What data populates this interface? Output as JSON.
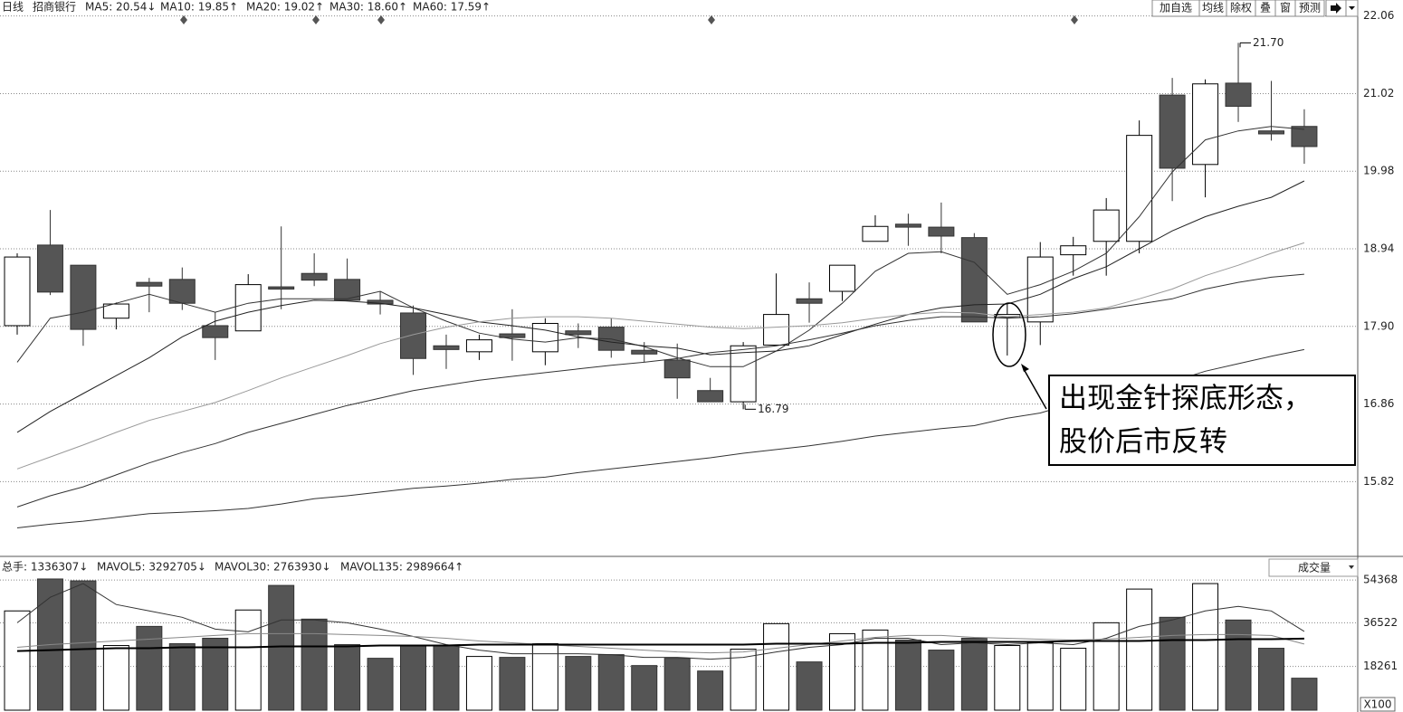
{
  "chart_data": [
    {
      "type": "candlestick",
      "title": "日线",
      "subtitle": "招商银行",
      "up_color": "#ffffff",
      "down_color": "#555555",
      "open": [
        17.91,
        18.99,
        18.72,
        18.01,
        18.49,
        18.53,
        17.91,
        17.84,
        18.43,
        18.61,
        18.53,
        18.25,
        18.08,
        17.64,
        17.56,
        17.8,
        17.56,
        17.84,
        17.89,
        17.58,
        17.45,
        17.04,
        16.89,
        17.65,
        18.27,
        18.37,
        19.04,
        19.27,
        19.23,
        19.09,
        18.02,
        17.96,
        18.86,
        19.04,
        19.04,
        21.0,
        20.07,
        21.16,
        20.52,
        20.58
      ],
      "close": [
        18.83,
        18.36,
        17.86,
        18.2,
        18.44,
        18.21,
        17.75,
        18.46,
        18.4,
        18.52,
        18.25,
        18.2,
        17.47,
        17.59,
        17.72,
        17.75,
        17.94,
        17.79,
        17.58,
        17.53,
        17.21,
        16.89,
        17.64,
        18.06,
        18.21,
        18.72,
        19.24,
        19.23,
        19.11,
        17.96,
        18.06,
        18.83,
        18.98,
        19.46,
        20.46,
        20.02,
        21.15,
        20.85,
        20.48,
        20.31
      ],
      "high": [
        18.88,
        19.46,
        18.72,
        18.22,
        18.55,
        18.69,
        18.09,
        18.6,
        19.24,
        18.88,
        18.81,
        18.37,
        18.18,
        17.79,
        17.79,
        18.13,
        18.01,
        17.94,
        18.01,
        17.69,
        17.67,
        17.21,
        17.69,
        18.61,
        18.49,
        18.72,
        19.39,
        19.41,
        19.56,
        19.15,
        18.2,
        19.03,
        19.1,
        19.62,
        20.66,
        21.23,
        21.21,
        21.7,
        21.19,
        20.81
      ],
      "low": [
        17.79,
        18.32,
        17.64,
        17.86,
        18.09,
        18.12,
        17.45,
        17.84,
        18.13,
        18.44,
        18.24,
        18.06,
        17.25,
        17.33,
        17.45,
        17.44,
        17.38,
        17.61,
        17.48,
        17.42,
        16.93,
        16.89,
        16.79,
        17.65,
        17.95,
        18.24,
        19.04,
        18.98,
        18.88,
        17.96,
        17.51,
        17.65,
        18.58,
        18.58,
        18.88,
        19.58,
        19.63,
        20.64,
        20.39,
        20.08
      ],
      "series": [
        {
          "name": "MA5",
          "color": "#333333",
          "legend": "MA5: 20.54↓",
          "values": [
            17.42,
            18.01,
            18.09,
            18.21,
            18.33,
            18.21,
            18.09,
            18.21,
            18.27,
            18.27,
            18.27,
            18.37,
            18.15,
            17.97,
            17.81,
            17.73,
            17.69,
            17.75,
            17.73,
            17.63,
            17.48,
            17.36,
            17.36,
            17.57,
            17.85,
            18.21,
            18.64,
            18.88,
            18.9,
            18.76,
            18.33,
            18.46,
            18.64,
            18.88,
            19.37,
            19.97,
            20.4,
            20.52,
            20.58,
            20.54
          ]
        },
        {
          "name": "MA10",
          "color": "#222222",
          "legend": "MA10: 19.85↑",
          "values": [
            16.48,
            16.76,
            17.0,
            17.24,
            17.48,
            17.76,
            17.97,
            18.09,
            18.18,
            18.25,
            18.24,
            18.21,
            18.15,
            18.06,
            17.96,
            17.91,
            17.85,
            17.76,
            17.69,
            17.64,
            17.61,
            17.52,
            17.55,
            17.57,
            17.64,
            17.79,
            17.93,
            18.06,
            18.15,
            18.19,
            18.2,
            18.33,
            18.54,
            18.7,
            18.94,
            19.18,
            19.37,
            19.51,
            19.63,
            19.85
          ]
        },
        {
          "name": "MA20",
          "color": "#999999",
          "legend": "MA20: 19.02↑",
          "values": [
            15.99,
            16.15,
            16.31,
            16.48,
            16.64,
            16.76,
            16.88,
            17.04,
            17.21,
            17.36,
            17.51,
            17.67,
            17.79,
            17.89,
            17.96,
            18.01,
            18.03,
            18.03,
            18.01,
            17.97,
            17.93,
            17.89,
            17.87,
            17.89,
            17.91,
            17.95,
            18.01,
            18.06,
            18.09,
            18.08,
            18.03,
            18.06,
            18.09,
            18.15,
            18.27,
            18.4,
            18.58,
            18.72,
            18.88,
            19.02
          ]
        },
        {
          "name": "MA30",
          "color": "#333333",
          "legend": "MA30: 18.60↑",
          "values": [
            15.48,
            15.63,
            15.75,
            15.91,
            16.07,
            16.21,
            16.33,
            16.48,
            16.6,
            16.72,
            16.84,
            16.94,
            17.04,
            17.11,
            17.18,
            17.23,
            17.28,
            17.33,
            17.38,
            17.42,
            17.47,
            17.55,
            17.59,
            17.64,
            17.72,
            17.81,
            17.91,
            17.98,
            18.03,
            18.03,
            18.01,
            18.03,
            18.07,
            18.13,
            18.2,
            18.27,
            18.4,
            18.49,
            18.56,
            18.6
          ]
        },
        {
          "name": "MA60",
          "color": "#333333",
          "legend": "MA60: 17.59↑",
          "values": [
            15.2,
            15.25,
            15.29,
            15.34,
            15.39,
            15.41,
            15.43,
            15.46,
            15.52,
            15.59,
            15.63,
            15.68,
            15.73,
            15.76,
            15.8,
            15.85,
            15.88,
            15.94,
            15.99,
            16.04,
            16.09,
            16.14,
            16.2,
            16.25,
            16.3,
            16.36,
            16.43,
            16.48,
            16.53,
            16.57,
            16.67,
            16.74,
            16.87,
            16.94,
            17.04,
            17.16,
            17.3,
            17.4,
            17.5,
            17.59
          ]
        }
      ],
      "max_label": {
        "value": 21.7,
        "label": "21.70"
      },
      "min_label": 16.79,
      "ylim": [
        14.83,
        22.25
      ],
      "yticks": [
        22.06,
        {
          "value": 21.02,
          "label": "21.02"
        },
        19.98,
        18.94,
        {
          "value": 17.9,
          "label": "17.90"
        },
        16.86,
        15.82
      ],
      "grid": true,
      "buttons": [
        "加自选",
        "均线",
        "除权",
        "叠",
        "窗",
        "预测"
      ],
      "annotation": [
        "出现金针探底形态，",
        "股价后市反转"
      ]
    },
    {
      "type": "bar",
      "title": "总手: 1336307↓",
      "indicator": "成交量",
      "unit": "X100",
      "values": [
        41464,
        54800,
        54017,
        27008,
        34997,
        27769,
        30052,
        41844,
        52115,
        38040,
        27389,
        21683,
        27008,
        27008,
        22444,
        22063,
        27769,
        22444,
        23204,
        18640,
        21683,
        16357,
        25487,
        36138,
        20161,
        31954,
        33475,
        29291,
        25106,
        30052,
        27008,
        28150,
        25867,
        36518,
        50593,
        38801,
        52876,
        37660,
        25867,
        13363
      ],
      "series": [
        {
          "name": "MAVOL5",
          "color": "#333333",
          "line_width": 1,
          "legend": "MAVOL5: 3292705↓",
          "values": [
            36518,
            47170,
            52876,
            44126,
            41464,
            38801,
            33856,
            32714,
            37660,
            37660,
            36518,
            33856,
            30812,
            27389,
            25106,
            23585,
            23585,
            23585,
            23204,
            22063,
            22063,
            21302,
            22063,
            24346,
            26248,
            27389,
            30052,
            30052,
            27389,
            28150,
            27389,
            28150,
            27389,
            30052,
            34997,
            37660,
            41464,
            43366,
            41464,
            32927
          ]
        },
        {
          "name": "MAVOL30",
          "color": "#888888",
          "line_width": 1,
          "legend": "MAVOL30: 2763930↓",
          "values": [
            26248,
            27389,
            28150,
            28910,
            29671,
            30432,
            31193,
            31954,
            31954,
            31954,
            31573,
            31193,
            30812,
            30052,
            28910,
            28150,
            27389,
            26628,
            25867,
            25106,
            24346,
            23965,
            24346,
            25867,
            27389,
            28910,
            30432,
            31193,
            31193,
            30432,
            30052,
            29671,
            29291,
            29671,
            30432,
            31193,
            31573,
            31573,
            31193,
            27639
          ]
        },
        {
          "name": "MAVOL135",
          "color": "#000000",
          "line_width": 2,
          "legend": "MAVOL135: 2989664↑",
          "values": [
            24726,
            25106,
            25487,
            25867,
            25867,
            26248,
            26248,
            26248,
            26628,
            26628,
            26628,
            27008,
            27008,
            27008,
            27389,
            27389,
            27389,
            27389,
            27389,
            27389,
            27389,
            27389,
            27389,
            27769,
            27769,
            27769,
            28150,
            28150,
            28530,
            28530,
            28530,
            28530,
            28910,
            28910,
            28910,
            29291,
            29291,
            29671,
            29671,
            29897
          ]
        }
      ],
      "ylim": [
        0,
        56300
      ],
      "yticks": [
        54368,
        36522,
        18261
      ],
      "grid": true
    }
  ]
}
